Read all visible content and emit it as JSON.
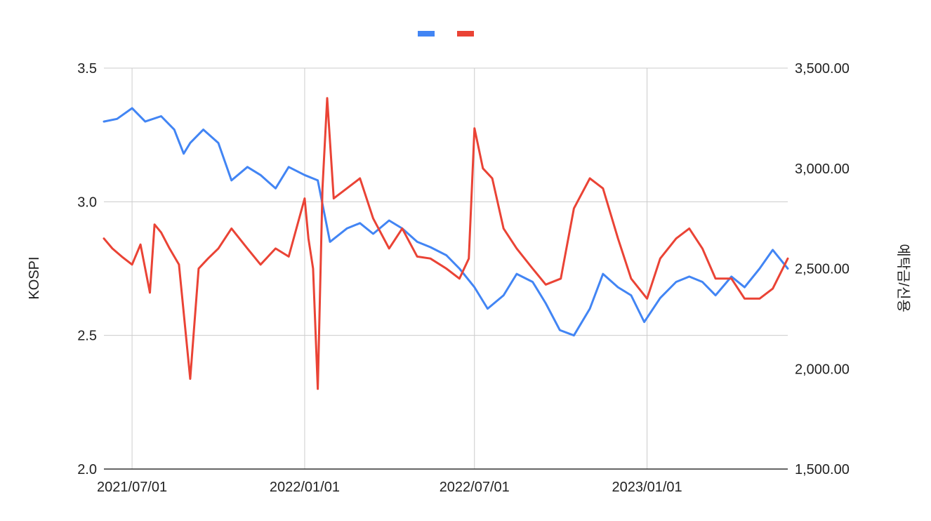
{
  "chart_data": {
    "type": "line",
    "title": "",
    "xlabel": "",
    "ylabel_left": "KOSPI",
    "ylabel_right": "예탁금/신용",
    "x_range": [
      "2021-06-01",
      "2023-05-31"
    ],
    "x_ticks": [
      "2021-07-01",
      "2022-01-01",
      "2022-07-01",
      "2023-01-01"
    ],
    "x_tick_labels": [
      "2021/07/01",
      "2022/01/01",
      "2022/07/01",
      "2023/01/01"
    ],
    "ylim_left": [
      2.0,
      3.5
    ],
    "ylim_right": [
      1500,
      3500
    ],
    "y_ticks_left": [
      2.0,
      2.5,
      3.0,
      3.5
    ],
    "y_tick_labels_left": [
      "2.0",
      "2.5",
      "3.0",
      "3.5"
    ],
    "y_ticks_right": [
      1500,
      2000,
      2500,
      3000,
      3500
    ],
    "y_tick_labels_right": [
      "1,500.00",
      "2,000.00",
      "2,500.00",
      "3,000.00",
      "3,500.00"
    ],
    "grid": true,
    "legend": "top-center",
    "colors": {
      "kospi": "#4285F4",
      "ratio": "#EA4335",
      "grid": "#cccccc",
      "axis_line": "#333333"
    },
    "series": [
      {
        "axis": "left",
        "color": "#4285F4",
        "x": [
          "2021-06-01",
          "2021-06-15",
          "2021-07-01",
          "2021-07-15",
          "2021-08-01",
          "2021-08-15",
          "2021-08-25",
          "2021-09-01",
          "2021-09-15",
          "2021-10-01",
          "2021-10-15",
          "2021-11-01",
          "2021-11-15",
          "2021-12-01",
          "2021-12-15",
          "2022-01-01",
          "2022-01-15",
          "2022-01-28",
          "2022-02-15",
          "2022-03-01",
          "2022-03-15",
          "2022-04-01",
          "2022-04-15",
          "2022-05-01",
          "2022-05-15",
          "2022-06-01",
          "2022-06-15",
          "2022-07-01",
          "2022-07-15",
          "2022-08-01",
          "2022-08-15",
          "2022-09-01",
          "2022-09-15",
          "2022-09-30",
          "2022-10-15",
          "2022-11-01",
          "2022-11-15",
          "2022-12-01",
          "2022-12-15",
          "2022-12-29",
          "2023-01-15",
          "2023-02-01",
          "2023-02-15",
          "2023-03-01",
          "2023-03-15",
          "2023-04-01",
          "2023-04-15",
          "2023-05-01",
          "2023-05-15",
          "2023-05-31"
        ],
        "values": [
          3.3,
          3.31,
          3.35,
          3.3,
          3.32,
          3.27,
          3.18,
          3.22,
          3.27,
          3.22,
          3.08,
          3.13,
          3.1,
          3.05,
          3.13,
          3.1,
          3.08,
          2.85,
          2.9,
          2.92,
          2.88,
          2.93,
          2.9,
          2.85,
          2.83,
          2.8,
          2.75,
          2.68,
          2.6,
          2.65,
          2.73,
          2.7,
          2.62,
          2.52,
          2.5,
          2.6,
          2.73,
          2.68,
          2.65,
          2.55,
          2.64,
          2.7,
          2.72,
          2.7,
          2.65,
          2.72,
          2.68,
          2.75,
          2.82,
          2.75
        ]
      },
      {
        "axis": "right",
        "color": "#EA4335",
        "x": [
          "2021-06-01",
          "2021-06-10",
          "2021-06-20",
          "2021-07-01",
          "2021-07-10",
          "2021-07-20",
          "2021-07-25",
          "2021-08-01",
          "2021-08-10",
          "2021-08-20",
          "2021-09-01",
          "2021-09-10",
          "2021-09-20",
          "2021-10-01",
          "2021-10-15",
          "2021-11-01",
          "2021-11-15",
          "2021-12-01",
          "2021-12-15",
          "2022-01-01",
          "2022-01-05",
          "2022-01-10",
          "2022-01-15",
          "2022-01-20",
          "2022-01-25",
          "2022-02-01",
          "2022-02-15",
          "2022-03-01",
          "2022-03-15",
          "2022-04-01",
          "2022-04-15",
          "2022-05-01",
          "2022-05-15",
          "2022-06-01",
          "2022-06-15",
          "2022-06-25",
          "2022-07-01",
          "2022-07-10",
          "2022-07-20",
          "2022-08-01",
          "2022-08-15",
          "2022-09-01",
          "2022-09-15",
          "2022-10-01",
          "2022-10-15",
          "2022-11-01",
          "2022-11-15",
          "2022-12-01",
          "2022-12-15",
          "2023-01-01",
          "2023-01-15",
          "2023-02-01",
          "2023-02-15",
          "2023-03-01",
          "2023-03-15",
          "2023-04-01",
          "2023-04-15",
          "2023-05-01",
          "2023-05-15",
          "2023-05-31"
        ],
        "values": [
          2650,
          2600,
          2560,
          2520,
          2620,
          2380,
          2720,
          2680,
          2600,
          2520,
          1950,
          2500,
          2550,
          2600,
          2700,
          2600,
          2520,
          2600,
          2560,
          2850,
          2650,
          2500,
          1900,
          2900,
          3350,
          2850,
          2900,
          2950,
          2750,
          2600,
          2700,
          2560,
          2550,
          2500,
          2450,
          2550,
          3200,
          3000,
          2950,
          2700,
          2600,
          2500,
          2420,
          2450,
          2800,
          2950,
          2900,
          2650,
          2450,
          2350,
          2550,
          2650,
          2700,
          2600,
          2450,
          2450,
          2350,
          2350,
          2400,
          2550
        ]
      }
    ]
  }
}
